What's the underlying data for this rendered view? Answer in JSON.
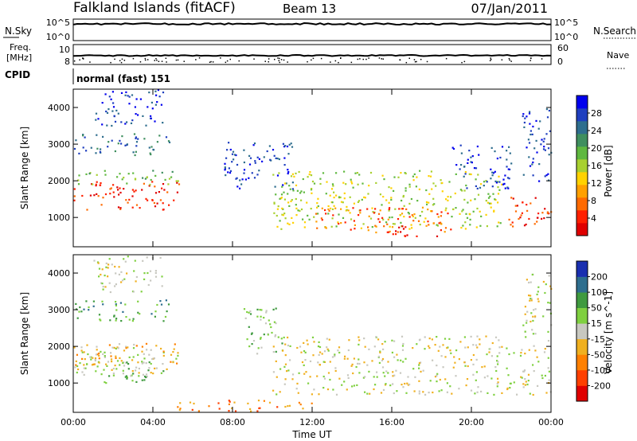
{
  "header": {
    "station": "Falkland Islands (fitACF)",
    "beam": "Beam 13",
    "date": "07/Jan/2011"
  },
  "summary_panels": {
    "nsky_label": "N.Sky",
    "nsky_ticks": [
      "10^5",
      "10^0"
    ],
    "nsearch_label": "N.Search",
    "nsearch_ticks": [
      "10^5",
      "10^0"
    ],
    "freq_label_line1": "Freq.",
    "freq_label_line2": "[MHz]",
    "freq_ticks": [
      "10",
      "8"
    ],
    "nave_label": "Nave",
    "nave_ticks": [
      "60",
      "0"
    ],
    "cpid_label": "CPID",
    "cpid_value": "normal (fast) 151"
  },
  "chart_data": [
    {
      "type": "heatmap",
      "name": "power-panel",
      "ylabel": "Slant Range [km]",
      "y_ticks": [
        "4000",
        "3000",
        "2000",
        "1000"
      ],
      "ylim": [
        200,
        4500
      ],
      "xlim": [
        0,
        24
      ],
      "x_ticks": [
        "00:00",
        "04:00",
        "08:00",
        "12:00",
        "16:00",
        "20:00",
        "00:00"
      ],
      "colorbar_label": "Power [dB]",
      "colorbar_ticks": [
        "28",
        "24",
        "20",
        "16",
        "12",
        "8",
        "4"
      ],
      "colorbar_colors": [
        "#0000ee",
        "#1f3fbf",
        "#2e6e8e",
        "#3f8f5f",
        "#5fb83f",
        "#a8d030",
        "#ffd200",
        "#ffa000",
        "#ff6a00",
        "#ff2000",
        "#e00000"
      ],
      "regions": [
        {
          "t0": 0.0,
          "t1": 5.3,
          "r0": 1200,
          "r1": 2000,
          "level": 9
        },
        {
          "t0": 0.0,
          "t1": 5.3,
          "r0": 1900,
          "r1": 2300,
          "level": 4
        },
        {
          "t0": 0.0,
          "t1": 4.8,
          "r0": 2700,
          "r1": 3300,
          "level": 2
        },
        {
          "t0": 1.0,
          "t1": 4.5,
          "r0": 3500,
          "r1": 4500,
          "level": 1
        },
        {
          "t0": 7.5,
          "t1": 11.0,
          "r0": 1800,
          "r1": 3100,
          "level": 1
        },
        {
          "t0": 10.0,
          "t1": 21.5,
          "r0": 700,
          "r1": 2300,
          "level": 5
        },
        {
          "t0": 12.0,
          "t1": 19.0,
          "r0": 600,
          "r1": 1300,
          "level": 8
        },
        {
          "t0": 16.0,
          "t1": 18.5,
          "r0": 500,
          "r1": 800,
          "level": 10
        },
        {
          "t0": 19.0,
          "t1": 22.0,
          "r0": 1800,
          "r1": 3000,
          "level": 1
        },
        {
          "t0": 21.7,
          "t1": 24.0,
          "r0": 700,
          "r1": 1600,
          "level": 9
        },
        {
          "t0": 22.5,
          "t1": 24.0,
          "r0": 2000,
          "r1": 4000,
          "level": 1
        }
      ]
    },
    {
      "type": "heatmap",
      "name": "velocity-panel",
      "ylabel": "Slant Range [km]",
      "y_ticks": [
        "4000",
        "3000",
        "2000",
        "1000"
      ],
      "ylim": [
        200,
        4500
      ],
      "xlim": [
        0,
        24
      ],
      "x_ticks": [
        "00:00",
        "04:00",
        "08:00",
        "12:00",
        "16:00",
        "20:00",
        "00:00"
      ],
      "xlabel": "Time UT",
      "colorbar_label": "Velocity [m s^-1]",
      "colorbar_ticks": [
        "200",
        "100",
        "50",
        "15",
        "-15",
        "-50",
        "-100",
        "-200"
      ],
      "colorbar_colors": [
        "#1a2fb0",
        "#2e6e8e",
        "#3f9a3f",
        "#7fd040",
        "#c8c8c0",
        "#f0b020",
        "#ff8000",
        "#ff4000",
        "#e00000"
      ],
      "regions": [
        {
          "t0": 0.0,
          "t1": 5.3,
          "r0": 1200,
          "r1": 2100,
          "level": 4
        },
        {
          "t0": 0.0,
          "t1": 5.3,
          "r0": 1500,
          "r1": 2100,
          "level": 5
        },
        {
          "t0": 1.5,
          "t1": 4.5,
          "r0": 1000,
          "r1": 1700,
          "level": 3
        },
        {
          "t0": 0.0,
          "t1": 4.8,
          "r0": 2700,
          "r1": 3300,
          "level": 2
        },
        {
          "t0": 1.0,
          "t1": 4.5,
          "r0": 3500,
          "r1": 4500,
          "level": 4
        },
        {
          "t0": 8.5,
          "t1": 10.5,
          "r0": 1800,
          "r1": 3100,
          "level": 3
        },
        {
          "t0": 10.0,
          "t1": 21.5,
          "r0": 700,
          "r1": 2300,
          "level": 4
        },
        {
          "t0": 21.7,
          "t1": 24.0,
          "r0": 700,
          "r1": 2000,
          "level": 4
        },
        {
          "t0": 5.0,
          "t1": 12.0,
          "r0": 250,
          "r1": 550,
          "level": 6
        },
        {
          "t0": 22.5,
          "t1": 24.0,
          "r0": 2000,
          "r1": 4000,
          "level": 4
        }
      ]
    }
  ]
}
